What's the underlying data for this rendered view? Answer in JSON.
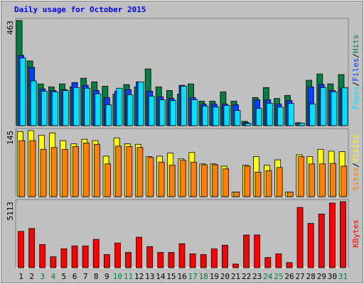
{
  "chart_data": [
    {
      "type": "bar",
      "title": "Daily usage for October 2015",
      "ylim": [
        0,
        463
      ],
      "yticks": [
        463
      ],
      "legend_separator": "/",
      "series": [
        {
          "name": "Hits",
          "color": "#008040",
          "values": [
            463,
            285,
            184,
            171,
            184,
            171,
            209,
            193,
            174,
            139,
            181,
            171,
            250,
            171,
            155,
            139,
            184,
            108,
            108,
            149,
            108,
            19,
            124,
            168,
            120,
            133,
            13,
            200,
            228,
            184,
            225
          ]
        },
        {
          "name": "Files",
          "color": "#0040ff",
          "values": [
            310,
            257,
            162,
            155,
            159,
            190,
            178,
            155,
            124,
            152,
            159,
            193,
            152,
            127,
            120,
            178,
            124,
            95,
            95,
            95,
            92,
            13,
            114,
            114,
            95,
            111,
            10,
            171,
            181,
            155,
            165
          ]
        },
        {
          "name": "Pages",
          "color": "#00e0ff",
          "values": [
            298,
            197,
            152,
            149,
            155,
            168,
            165,
            140,
            92,
            165,
            136,
            193,
            130,
            114,
            111,
            174,
            114,
            86,
            82,
            89,
            67,
            10,
            76,
            98,
            82,
            98,
            10,
            95,
            168,
            149,
            168
          ]
        }
      ]
    },
    {
      "type": "bar",
      "ylim": [
        0,
        145
      ],
      "yticks": [
        145
      ],
      "legend_separator": "/",
      "series": [
        {
          "name": "Visits",
          "color": "#ffff00",
          "values": [
            143,
            145,
            135,
            140,
            123,
            116,
            126,
            123,
            89,
            129,
            116,
            115,
            88,
            89,
            96,
            83,
            97,
            72,
            72,
            67,
            10,
            69,
            88,
            69,
            81,
            10,
            92,
            88,
            104,
            100,
            99
          ]
        },
        {
          "name": "Sites",
          "color": "#ff8000",
          "values": [
            123,
            123,
            104,
            108,
            104,
            110,
            118,
            115,
            72,
            111,
            110,
            108,
            86,
            76,
            69,
            80,
            76,
            70,
            70,
            61,
            10,
            67,
            54,
            57,
            64,
            10,
            88,
            72,
            72,
            73,
            67
          ]
        }
      ]
    },
    {
      "type": "bar",
      "ylim": [
        0,
        5113
      ],
      "yticks": [
        5113
      ],
      "categories": [
        "1",
        "2",
        "3",
        "4",
        "5",
        "6",
        "7",
        "8",
        "9",
        "10",
        "11",
        "12",
        "13",
        "14",
        "15",
        "16",
        "17",
        "18",
        "19",
        "20",
        "21",
        "22",
        "23",
        "24",
        "25",
        "26",
        "27",
        "28",
        "29",
        "30",
        "31"
      ],
      "category_colors": [
        "#000000",
        "#000000",
        "#008040",
        "#008040",
        "#000000",
        "#000000",
        "#000000",
        "#000000",
        "#000000",
        "#008040",
        "#008040",
        "#000000",
        "#000000",
        "#000000",
        "#000000",
        "#000000",
        "#008040",
        "#008040",
        "#000000",
        "#000000",
        "#000000",
        "#000000",
        "#000000",
        "#008040",
        "#008040",
        "#000000",
        "#000000",
        "#000000",
        "#000000",
        "#000000",
        "#008040"
      ],
      "series": [
        {
          "name": "KBytes",
          "color": "#ff0000",
          "values": [
            2810,
            3035,
            1798,
            843,
            1461,
            1686,
            1686,
            2192,
            1012,
            1911,
            1180,
            2360,
            1630,
            1180,
            1180,
            1855,
            1068,
            1012,
            1461,
            1742,
            281,
            2529,
            2529,
            787,
            1068,
            393,
            4665,
            3428,
            4159,
            5002,
            5113
          ]
        }
      ]
    }
  ]
}
